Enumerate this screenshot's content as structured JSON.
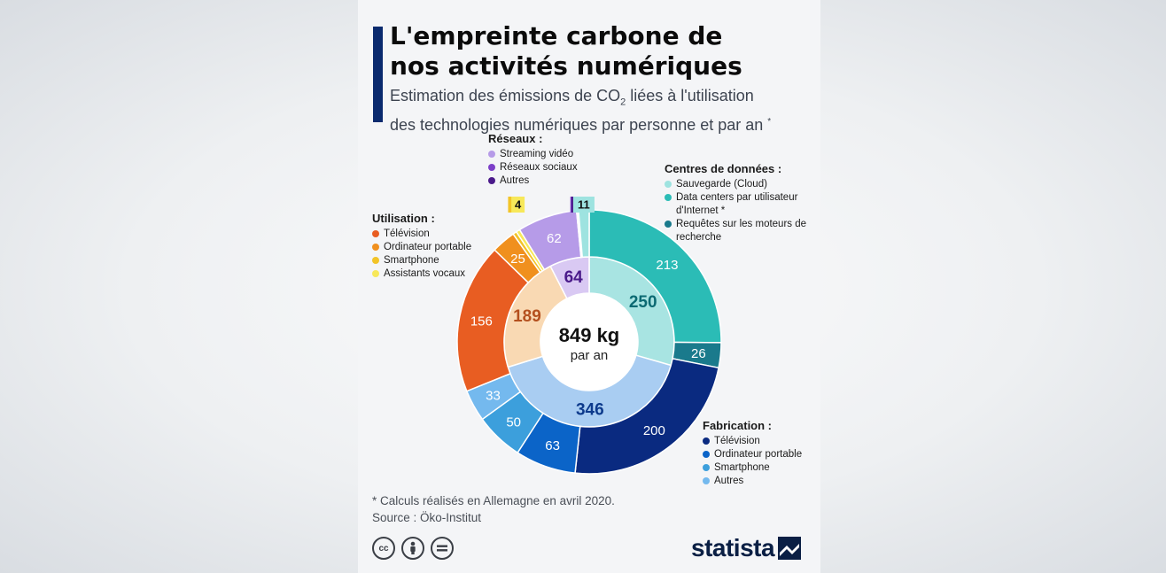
{
  "title_line1": "L'empreinte carbone de",
  "title_line2": "nos activités numériques",
  "subtitle_before": "Estimation des émissions de CO",
  "subtitle_sub": "2",
  "subtitle_after": " liées à l'utilisation",
  "subtitle_line2": "des technologies numériques par personne et par an",
  "subtitle_star": "*",
  "center_value": "849 kg",
  "center_label": "par an",
  "footnote_line1": "* Calculs réalisés en Allemagne en avril 2020.",
  "footnote_line2": "Source : Öko-Institut",
  "logo_text": "statista",
  "legend_groups": [
    {
      "title": "Réseaux :",
      "items": [
        {
          "label": "Streaming vidéo",
          "color": "#b69be8"
        },
        {
          "label": "Réseaux sociaux",
          "color": "#7c3fc8"
        },
        {
          "label": "Autres",
          "color": "#4a1a8a"
        }
      ]
    },
    {
      "title": "Centres de données :",
      "items": [
        {
          "label": "Sauvegarde (Cloud)",
          "color": "#9ee3e0"
        },
        {
          "label": "Data centers par utilisateur d'Internet *",
          "color": "#2bbcb6"
        },
        {
          "label": "Requêtes sur les moteurs de recherche",
          "color": "#1a7a8c"
        }
      ]
    },
    {
      "title": "Utilisation :",
      "items": [
        {
          "label": "Télévision",
          "color": "#e85d22"
        },
        {
          "label": "Ordinateur portable",
          "color": "#f0901e"
        },
        {
          "label": "Smartphone",
          "color": "#f2c428"
        },
        {
          "label": "Assistants vocaux",
          "color": "#f7e85a"
        }
      ]
    },
    {
      "title": "Fabrication :",
      "items": [
        {
          "label": "Télévision",
          "color": "#0a2a80"
        },
        {
          "label": "Ordinateur portable",
          "color": "#0b64c8"
        },
        {
          "label": "Smartphone",
          "color": "#3c9fdc"
        },
        {
          "label": "Autres",
          "color": "#74b9ee"
        }
      ]
    }
  ],
  "chart_data": {
    "type": "pie",
    "total": 849,
    "unit": "kg",
    "inner_ring": [
      {
        "name": "Centres de données",
        "value": 250,
        "color": "#a8e4e2",
        "label_color": "#0c6a73"
      },
      {
        "name": "Fabrication",
        "value": 346,
        "color": "#a9cdf2",
        "label_color": "#0d3a8c"
      },
      {
        "name": "Utilisation",
        "value": 189,
        "color": "#f9d9b3",
        "label_color": "#b4501e"
      },
      {
        "name": "Réseaux",
        "value": 64,
        "color": "#d9c9f3",
        "label_color": "#4a1a8a"
      }
    ],
    "outer_ring": [
      {
        "group": "Centres de données",
        "name": "Data centers par utilisateur d'Internet *",
        "value": 213,
        "color": "#2bbcb6"
      },
      {
        "group": "Centres de données",
        "name": "Requêtes sur les moteurs de recherche",
        "value": 26,
        "color": "#1a7a8c"
      },
      {
        "group": "Fabrication",
        "name": "Télévision",
        "value": 200,
        "color": "#0a2a80"
      },
      {
        "group": "Fabrication",
        "name": "Ordinateur portable",
        "value": 63,
        "color": "#0b64c8"
      },
      {
        "group": "Fabrication",
        "name": "Smartphone",
        "value": 50,
        "color": "#3c9fdc"
      },
      {
        "group": "Fabrication",
        "name": "Autres",
        "value": 33,
        "color": "#74b9ee"
      },
      {
        "group": "Utilisation",
        "name": "Télévision",
        "value": 156,
        "color": "#e85d22"
      },
      {
        "group": "Utilisation",
        "name": "Ordinateur portable",
        "value": 25,
        "color": "#f0901e"
      },
      {
        "group": "Utilisation",
        "name": "Smartphone",
        "value": 4,
        "color": "#f2c428"
      },
      {
        "group": "Utilisation",
        "name": "Assistants vocaux",
        "value": 4,
        "color": "#f7e85a"
      },
      {
        "group": "Réseaux",
        "name": "Streaming vidéo",
        "value": 62,
        "color": "#b69be8"
      },
      {
        "group": "Réseaux",
        "name": "Réseaux sociaux",
        "value": 1,
        "color": "#7c3fc8"
      },
      {
        "group": "Réseaux",
        "name": "Autres",
        "value": 1,
        "color": "#4a1a8a"
      },
      {
        "group": "Centres de données",
        "name": "Sauvegarde (Cloud)",
        "value": 11,
        "color": "#9ee3e0"
      }
    ]
  }
}
